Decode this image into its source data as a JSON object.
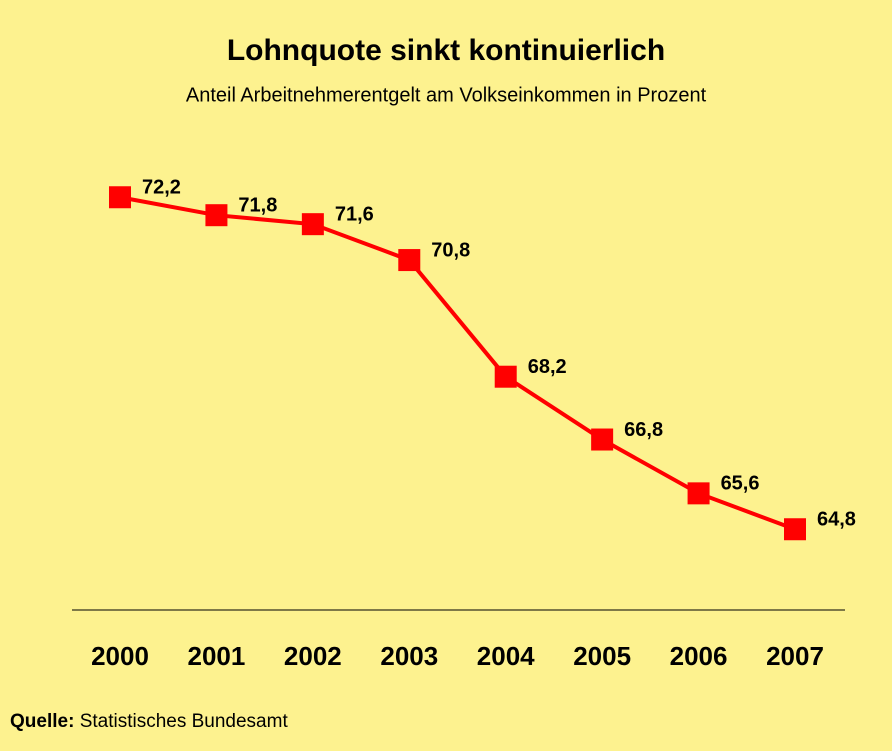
{
  "chart_data": {
    "type": "line",
    "title": "Lohnquote sinkt kontinuierlich",
    "subtitle": "Anteil Arbeitnehmerentgelt am Volkseinkommen in Prozent",
    "categories": [
      "2000",
      "2001",
      "2002",
      "2003",
      "2004",
      "2005",
      "2006",
      "2007"
    ],
    "series": [
      {
        "color": "#ff0000",
        "values": [
          72.2,
          71.8,
          71.6,
          70.8,
          68.2,
          66.8,
          65.6,
          64.8
        ],
        "value_labels": [
          "72,2",
          "71,8",
          "71,6",
          "70,8",
          "68,2",
          "66,8",
          "65,6",
          "64,8"
        ]
      }
    ],
    "ylim": [
      63,
      74
    ],
    "source_label": "Quelle:",
    "source": "Statistisches Bundesamt"
  }
}
